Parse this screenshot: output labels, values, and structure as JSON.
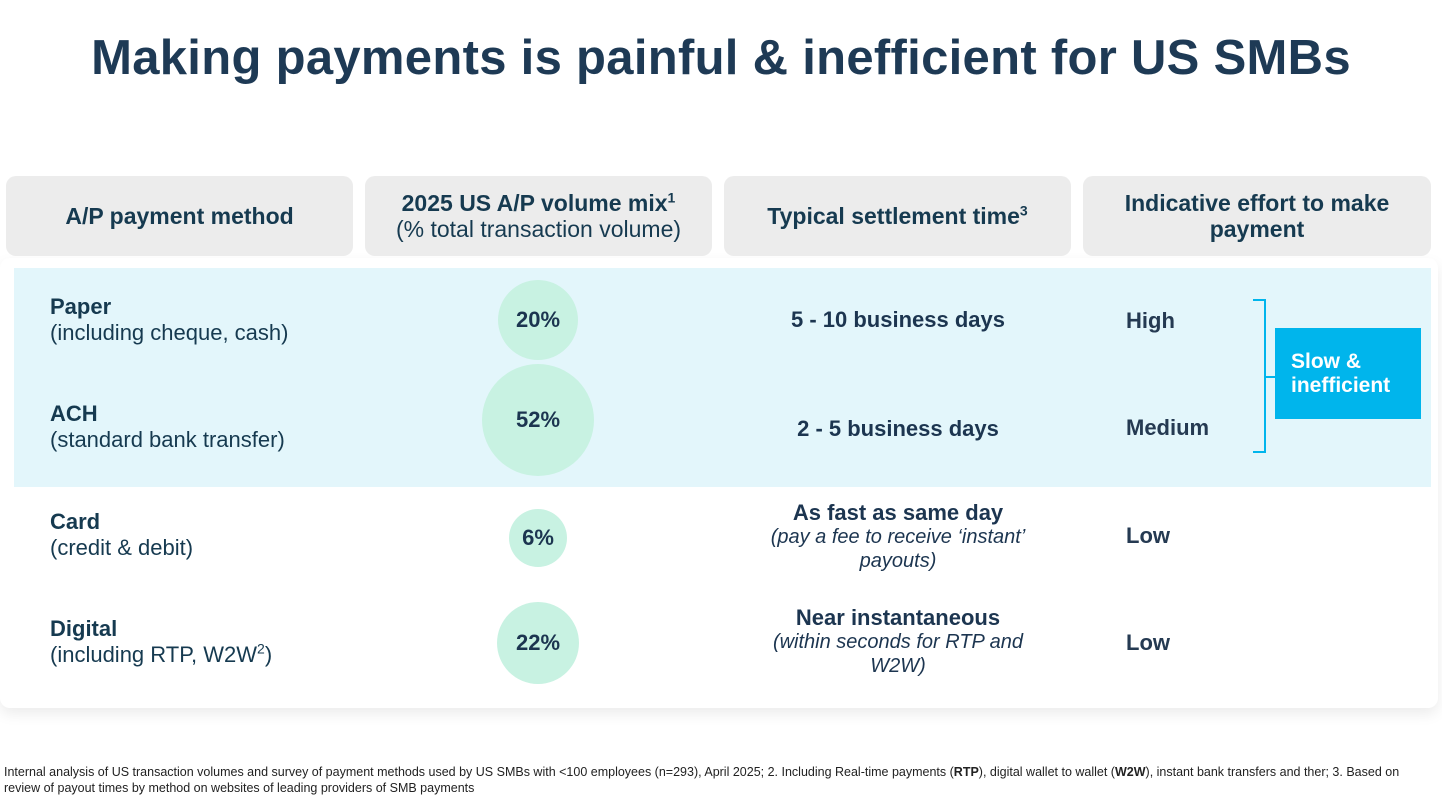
{
  "title": "Making payments is painful & inefficient for US SMBs",
  "headers": [
    {
      "label": "A/P payment method"
    },
    {
      "label": "2025 US A/P volume mix",
      "sup": "1",
      "sub": "(% total transaction volume)"
    },
    {
      "label": "Typical settlement time",
      "sup": "3"
    },
    {
      "label": "Indicative effort to make payment"
    }
  ],
  "rows": [
    {
      "method": "Paper",
      "detail": "(including cheque, cash)",
      "share": "20%",
      "settle": "5 - 10 business days",
      "settle_note": "",
      "effort": "High"
    },
    {
      "method": "ACH",
      "detail": "(standard bank transfer)",
      "share": "52%",
      "settle": "2 - 5 business days",
      "settle_note": "",
      "effort": "Medium"
    },
    {
      "method": "Card",
      "detail": "(credit & debit)",
      "share": "6%",
      "settle": "As fast as same day",
      "settle_note": "(pay a fee to receive ‘instant’ payouts)",
      "effort": "Low"
    },
    {
      "method": "Digital",
      "detail_pre": "(including RTP, W2W",
      "detail_sup": "2",
      "detail_post": ")",
      "share": "22%",
      "settle": "Near instantaneous",
      "settle_note": "(within seconds for RTP and W2W)",
      "effort": "Low"
    }
  ],
  "share_values": [
    20,
    52,
    6,
    22
  ],
  "callout": "Slow & inefficient",
  "colors": {
    "accent": "#00b5ec",
    "highlight_band": "#e3f6fb",
    "bubble": "#c8f2e2",
    "text": "#1c3550"
  },
  "footnote": {
    "p1": "Internal analysis of US transaction volumes and survey of payment methods used by US SMBs with <100 employees (n=293), April 2025; 2. Including Real-time payments (",
    "b1": "RTP",
    "p2": "), digital wallet to wallet (",
    "b2": "W2W",
    "p3": "), instant bank transfers and ther; 3. Based on review of payout times by method on websites of leading providers of SMB payments"
  }
}
